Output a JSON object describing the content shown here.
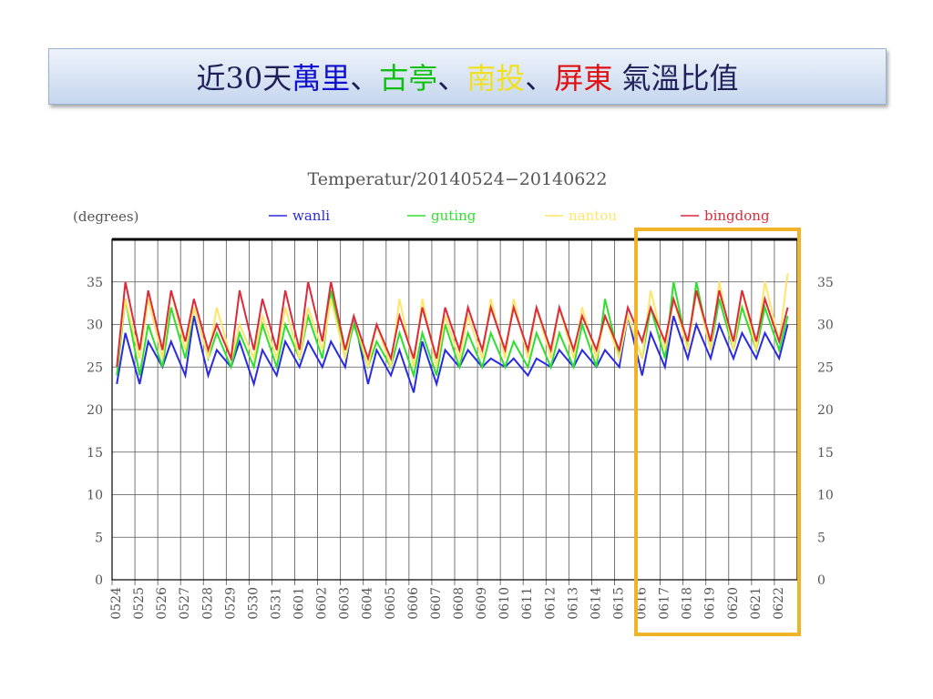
{
  "header": {
    "title_parts": [
      {
        "text": "近30天",
        "color": "#1f1f5a"
      },
      {
        "text": "萬里",
        "color": "#1010d0"
      },
      {
        "text": "、",
        "color": "#1f1f5a"
      },
      {
        "text": "古亭",
        "color": "#10c010"
      },
      {
        "text": "、",
        "color": "#1f1f5a"
      },
      {
        "text": "南投",
        "color": "#f0e020"
      },
      {
        "text": "、",
        "color": "#1f1f5a"
      },
      {
        "text": "屏東",
        "color": "#e01010"
      },
      {
        "text": " 氣溫比值",
        "color": "#1f1f5a"
      }
    ]
  },
  "chart_data": {
    "type": "line",
    "title": "Temperatur/20140524−20140622",
    "y_label": "(degrees)",
    "x": [
      5,
      14,
      29,
      38,
      53,
      62,
      77,
      86,
      101,
      110,
      125,
      134,
      149,
      158,
      173,
      182,
      197,
      206,
      221,
      230,
      245,
      254,
      269,
      278,
      293,
      302,
      317,
      326,
      341,
      350,
      365,
      374,
      389,
      398,
      413,
      422,
      437,
      446,
      461,
      470,
      485,
      494,
      509,
      518,
      533,
      542,
      557,
      566,
      581,
      590,
      605,
      614,
      629,
      638,
      653,
      662,
      677,
      686,
      701,
      710
    ],
    "xlim": [
      0,
      720
    ],
    "xticks": [
      {
        "value": 0,
        "label": "0524"
      },
      {
        "value": 24,
        "label": "0525"
      },
      {
        "value": 48,
        "label": "0526"
      },
      {
        "value": 72,
        "label": "0527"
      },
      {
        "value": 96,
        "label": "0528"
      },
      {
        "value": 120,
        "label": "0529"
      },
      {
        "value": 144,
        "label": "0530"
      },
      {
        "value": 168,
        "label": "0531"
      },
      {
        "value": 192,
        "label": "0601"
      },
      {
        "value": 216,
        "label": "0602"
      },
      {
        "value": 240,
        "label": "0603"
      },
      {
        "value": 264,
        "label": "0604"
      },
      {
        "value": 288,
        "label": "0605"
      },
      {
        "value": 312,
        "label": "0606"
      },
      {
        "value": 336,
        "label": "0607"
      },
      {
        "value": 360,
        "label": "0608"
      },
      {
        "value": 384,
        "label": "0609"
      },
      {
        "value": 408,
        "label": "0610"
      },
      {
        "value": 432,
        "label": "0611"
      },
      {
        "value": 456,
        "label": "0612"
      },
      {
        "value": 480,
        "label": "0613"
      },
      {
        "value": 504,
        "label": "0614"
      },
      {
        "value": 528,
        "label": "0615"
      },
      {
        "value": 552,
        "label": "0616"
      },
      {
        "value": 576,
        "label": "0617"
      },
      {
        "value": 600,
        "label": "0618"
      },
      {
        "value": 624,
        "label": "0619"
      },
      {
        "value": 648,
        "label": "0620"
      },
      {
        "value": 672,
        "label": "0621"
      },
      {
        "value": 696,
        "label": "0622"
      }
    ],
    "ylim": [
      0,
      40
    ],
    "yticks": [
      0,
      5,
      10,
      15,
      20,
      25,
      30,
      35
    ],
    "grid": true,
    "series": [
      {
        "name": "wanli",
        "color": "#2a2ae0",
        "values": [
          23,
          29,
          23,
          28,
          25,
          28,
          24,
          31,
          24,
          27,
          25,
          28,
          23,
          27,
          24,
          28,
          25,
          28,
          25,
          28,
          25,
          31,
          23,
          27,
          24,
          27,
          22,
          28,
          23,
          27,
          25,
          27,
          25,
          26,
          25,
          26,
          24,
          26,
          25,
          27,
          25,
          27,
          25,
          27,
          25,
          31,
          24,
          29,
          25,
          31,
          26,
          30,
          26,
          30,
          26,
          29,
          26,
          29,
          26,
          30
        ]
      },
      {
        "name": "guting",
        "color": "#2ee02e",
        "values": [
          24,
          33,
          24,
          30,
          25,
          32,
          26,
          32,
          26,
          29,
          25,
          29,
          25,
          30,
          25,
          30,
          26,
          31,
          26,
          34,
          26,
          30,
          25,
          28,
          25,
          29,
          24,
          29,
          24,
          30,
          25,
          29,
          25,
          29,
          25,
          28,
          25,
          29,
          25,
          29,
          25,
          30,
          25,
          33,
          26,
          31,
          26,
          32,
          26,
          35,
          27,
          35,
          27,
          33,
          27,
          32,
          27,
          32,
          27,
          31
        ]
      },
      {
        "name": "nantou",
        "color": "#ffe56a",
        "values": [
          25,
          33,
          26,
          33,
          26,
          34,
          27,
          32,
          26,
          32,
          26,
          30,
          26,
          31,
          26,
          32,
          26,
          32,
          27,
          33,
          26,
          31,
          25,
          30,
          25,
          33,
          25,
          33,
          25,
          31,
          26,
          31,
          26,
          33,
          26,
          33,
          26,
          32,
          26,
          32,
          26,
          32,
          26,
          31,
          26,
          31,
          26,
          34,
          27,
          33,
          27,
          34,
          27,
          35,
          27,
          34,
          27,
          35,
          28,
          36
        ]
      },
      {
        "name": "bingdong",
        "color": "#dd2a3a",
        "values": [
          25,
          35,
          27,
          34,
          27,
          34,
          28,
          33,
          27,
          30,
          26,
          34,
          27,
          33,
          27,
          34,
          27,
          35,
          28,
          35,
          27,
          31,
          26,
          30,
          26,
          31,
          26,
          32,
          26,
          32,
          27,
          32,
          27,
          32,
          27,
          32,
          27,
          32,
          27,
          32,
          27,
          31,
          27,
          31,
          27,
          32,
          28,
          32,
          28,
          33,
          28,
          34,
          28,
          34,
          28,
          34,
          28,
          33,
          28,
          32
        ]
      }
    ]
  }
}
